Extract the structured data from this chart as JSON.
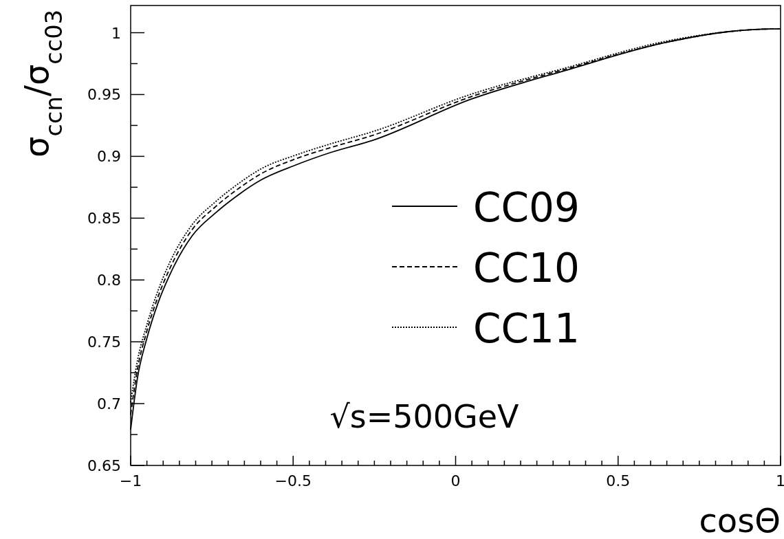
{
  "chart_data": {
    "type": "line",
    "xlabel": "cosΘ",
    "ylabel": "σ$_{ccn}$/σ$_{cc03}$",
    "annotations": [
      "√s=500GeV"
    ],
    "xlim": [
      -1,
      1
    ],
    "ylim": [
      0.65,
      1.022
    ],
    "xticks": [
      -1,
      {
        "value": -0.95,
        "label": null
      },
      {
        "value": -0.9,
        "label": null
      },
      {
        "value": -0.85,
        "label": null
      },
      {
        "value": -0.8,
        "label": null
      },
      {
        "value": -0.75,
        "label": null
      },
      {
        "value": -0.7,
        "label": null
      },
      {
        "value": -0.65,
        "label": null
      },
      {
        "value": -0.6,
        "label": null
      },
      {
        "value": -0.55,
        "label": null
      },
      -0.5,
      {
        "value": -0.45,
        "label": null
      },
      {
        "value": -0.4,
        "label": null
      },
      {
        "value": -0.35,
        "label": null
      },
      {
        "value": -0.3,
        "label": null
      },
      {
        "value": -0.25,
        "label": null
      },
      {
        "value": -0.2,
        "label": null
      },
      {
        "value": -0.15,
        "label": null
      },
      {
        "value": -0.1,
        "label": null
      },
      {
        "value": -0.05,
        "label": null
      },
      0,
      {
        "value": 0.05,
        "label": null
      },
      {
        "value": 0.1,
        "label": null
      },
      {
        "value": 0.15,
        "label": null
      },
      {
        "value": 0.2,
        "label": null
      },
      {
        "value": 0.25,
        "label": null
      },
      {
        "value": 0.3,
        "label": null
      },
      {
        "value": 0.35,
        "label": null
      },
      {
        "value": 0.4,
        "label": null
      },
      {
        "value": 0.45,
        "label": null
      },
      0.5,
      {
        "value": 0.55,
        "label": null
      },
      {
        "value": 0.6,
        "label": null
      },
      {
        "value": 0.65,
        "label": null
      },
      {
        "value": 0.7,
        "label": null
      },
      {
        "value": 0.75,
        "label": null
      },
      {
        "value": 0.8,
        "label": null
      },
      {
        "value": 0.85,
        "label": null
      },
      {
        "value": 0.9,
        "label": null
      },
      {
        "value": 0.95,
        "label": null
      },
      1
    ],
    "yticks": [
      0.65,
      {
        "value": 0.675,
        "label": null
      },
      0.7,
      {
        "value": 0.725,
        "label": null
      },
      0.75,
      {
        "value": 0.775,
        "label": null
      },
      0.8,
      {
        "value": 0.825,
        "label": null
      },
      0.85,
      {
        "value": 0.875,
        "label": null
      },
      0.9,
      {
        "value": 0.925,
        "label": null
      },
      0.95,
      {
        "value": 0.975,
        "label": null
      },
      1
    ],
    "x": [
      -1,
      -0.979,
      -0.951,
      -0.915,
      -0.88,
      -0.81,
      -0.74,
      -0.668,
      -0.598,
      -0.492,
      -0.386,
      -0.255,
      0.045,
      0.345,
      0.645,
      0.845,
      0.975,
      1
    ],
    "legend": "right",
    "series": [
      {
        "name": "CC09",
        "color": "#000000",
        "line_style": "solid",
        "values": [
          0.679,
          0.721,
          0.752,
          0.782,
          0.804,
          0.836,
          0.854,
          0.869,
          0.881,
          0.893,
          0.903,
          0.913,
          0.946,
          0.97,
          0.992,
          1.001,
          1.003,
          1.003
        ]
      },
      {
        "name": "CC10",
        "color": "#000000",
        "line_style": "dashed",
        "values": [
          0.691,
          0.728,
          0.758,
          0.787,
          0.809,
          0.841,
          0.859,
          0.874,
          0.886,
          0.898,
          0.907,
          0.917,
          0.948,
          0.971,
          0.992,
          1.001,
          1.003,
          1.003
        ]
      },
      {
        "name": "CC11",
        "color": "#000000",
        "line_style": "dotted",
        "values": [
          0.701,
          0.735,
          0.763,
          0.792,
          0.814,
          0.845,
          0.863,
          0.878,
          0.89,
          0.901,
          0.91,
          0.92,
          0.95,
          0.972,
          0.993,
          1.001,
          1.003,
          1.003
        ]
      }
    ]
  }
}
